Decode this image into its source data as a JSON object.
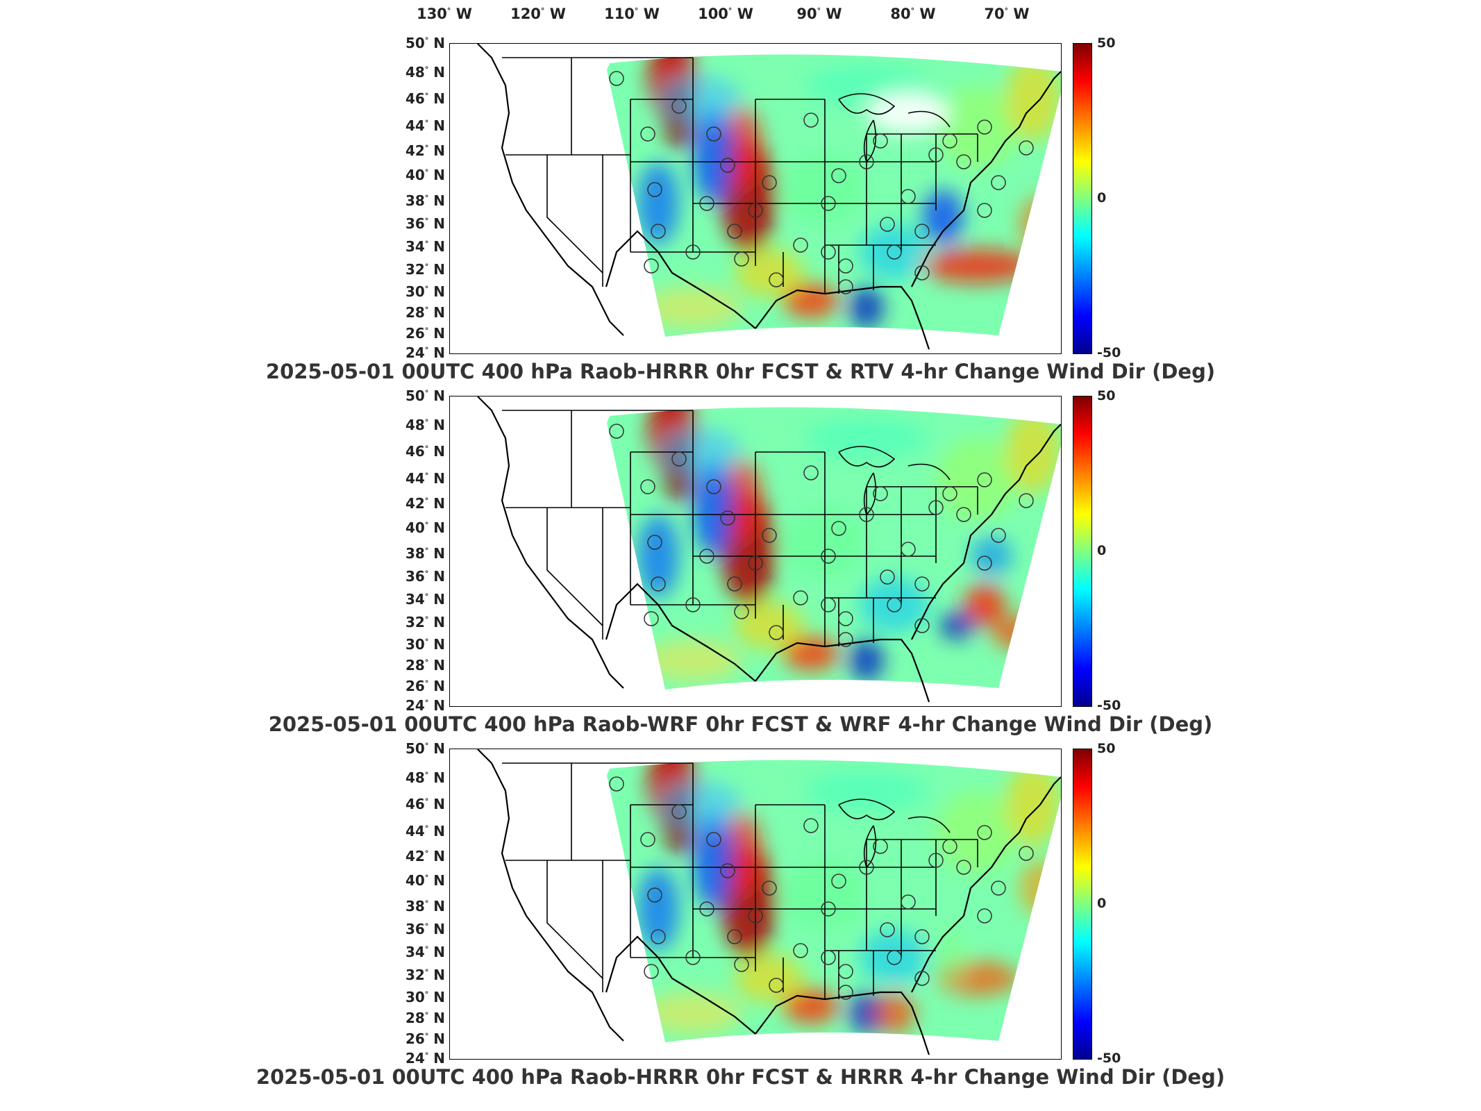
{
  "longitude_labels": [
    "130",
    "120",
    "110",
    "100",
    "90",
    "80",
    "70"
  ],
  "latitude_labels": [
    "50",
    "48",
    "46",
    "44",
    "42",
    "40",
    "38",
    "36",
    "34",
    "32",
    "30",
    "28",
    "26",
    "24"
  ],
  "lon_suffix": "W",
  "lat_suffix": "N",
  "degree_symbol": "°",
  "colorbar": {
    "max": "50",
    "mid": "0",
    "min": "-50",
    "colormap": "jet"
  },
  "panels": [
    {
      "title": "2025-05-01 00UTC 400 hPa Raob-HRRR 0hr FCST & RTV 4-hr Change Wind Dir (Deg)"
    },
    {
      "title": "2025-05-01 00UTC 400 hPa Raob-WRF 0hr FCST & WRF 4-hr Change Wind Dir (Deg)"
    },
    {
      "title": "2025-05-01 00UTC 400 hPa Raob-HRRR 0hr FCST & HRRR 4-hr Change Wind Dir (Deg)"
    }
  ],
  "colors": {
    "border": "#000000",
    "background": "#ffffff",
    "title_text": "#333333"
  }
}
